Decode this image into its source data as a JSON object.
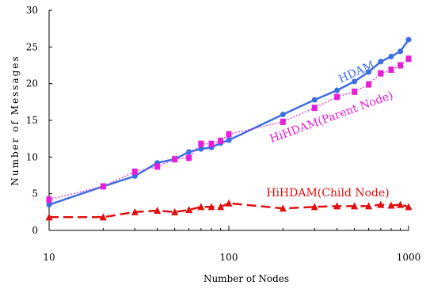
{
  "chart_data": {
    "type": "line",
    "title": "",
    "xlabel": "Number of Nodes",
    "ylabel": "Number of Messages",
    "xscale": "log",
    "xlim": [
      10,
      1000
    ],
    "ylim": [
      0,
      30
    ],
    "xticks": [
      10,
      100,
      1000
    ],
    "yticks": [
      0,
      5,
      10,
      15,
      20,
      25,
      30
    ],
    "grid": false,
    "legend": "inline labels",
    "series": [
      {
        "name": "HDAM",
        "color": "#3b6fe0",
        "style": "solid",
        "marker": "circle",
        "x": [
          10,
          20,
          30,
          40,
          50,
          60,
          70,
          80,
          90,
          100,
          200,
          300,
          400,
          500,
          600,
          700,
          800,
          900,
          1000
        ],
        "y": [
          3.5,
          6.0,
          7.4,
          9.2,
          9.7,
          10.7,
          11.1,
          11.3,
          11.9,
          12.3,
          15.8,
          17.8,
          19.1,
          20.3,
          21.6,
          23.0,
          23.7,
          24.4,
          26.0
        ]
      },
      {
        "name": "HiHDAM(Parent Node)",
        "color": "#e61ed8",
        "style": "dotted",
        "marker": "square",
        "x": [
          10,
          20,
          30,
          40,
          50,
          60,
          70,
          80,
          90,
          100,
          200,
          300,
          400,
          500,
          600,
          700,
          800,
          900,
          1000
        ],
        "y": [
          4.2,
          6.0,
          8.0,
          8.7,
          9.7,
          9.9,
          11.8,
          11.8,
          12.2,
          13.1,
          14.8,
          16.7,
          18.2,
          18.9,
          19.9,
          21.4,
          21.9,
          22.5,
          23.4
        ]
      },
      {
        "name": "HiHDAM(Child Node)",
        "color": "#e01010",
        "style": "dashed",
        "marker": "triangle",
        "x": [
          10,
          20,
          30,
          40,
          50,
          60,
          70,
          80,
          90,
          100,
          200,
          300,
          400,
          500,
          600,
          700,
          800,
          900,
          1000
        ],
        "y": [
          1.8,
          1.8,
          2.5,
          2.7,
          2.5,
          2.8,
          3.2,
          3.2,
          3.2,
          3.7,
          3.0,
          3.2,
          3.3,
          3.3,
          3.3,
          3.5,
          3.4,
          3.5,
          3.2
        ]
      }
    ]
  }
}
